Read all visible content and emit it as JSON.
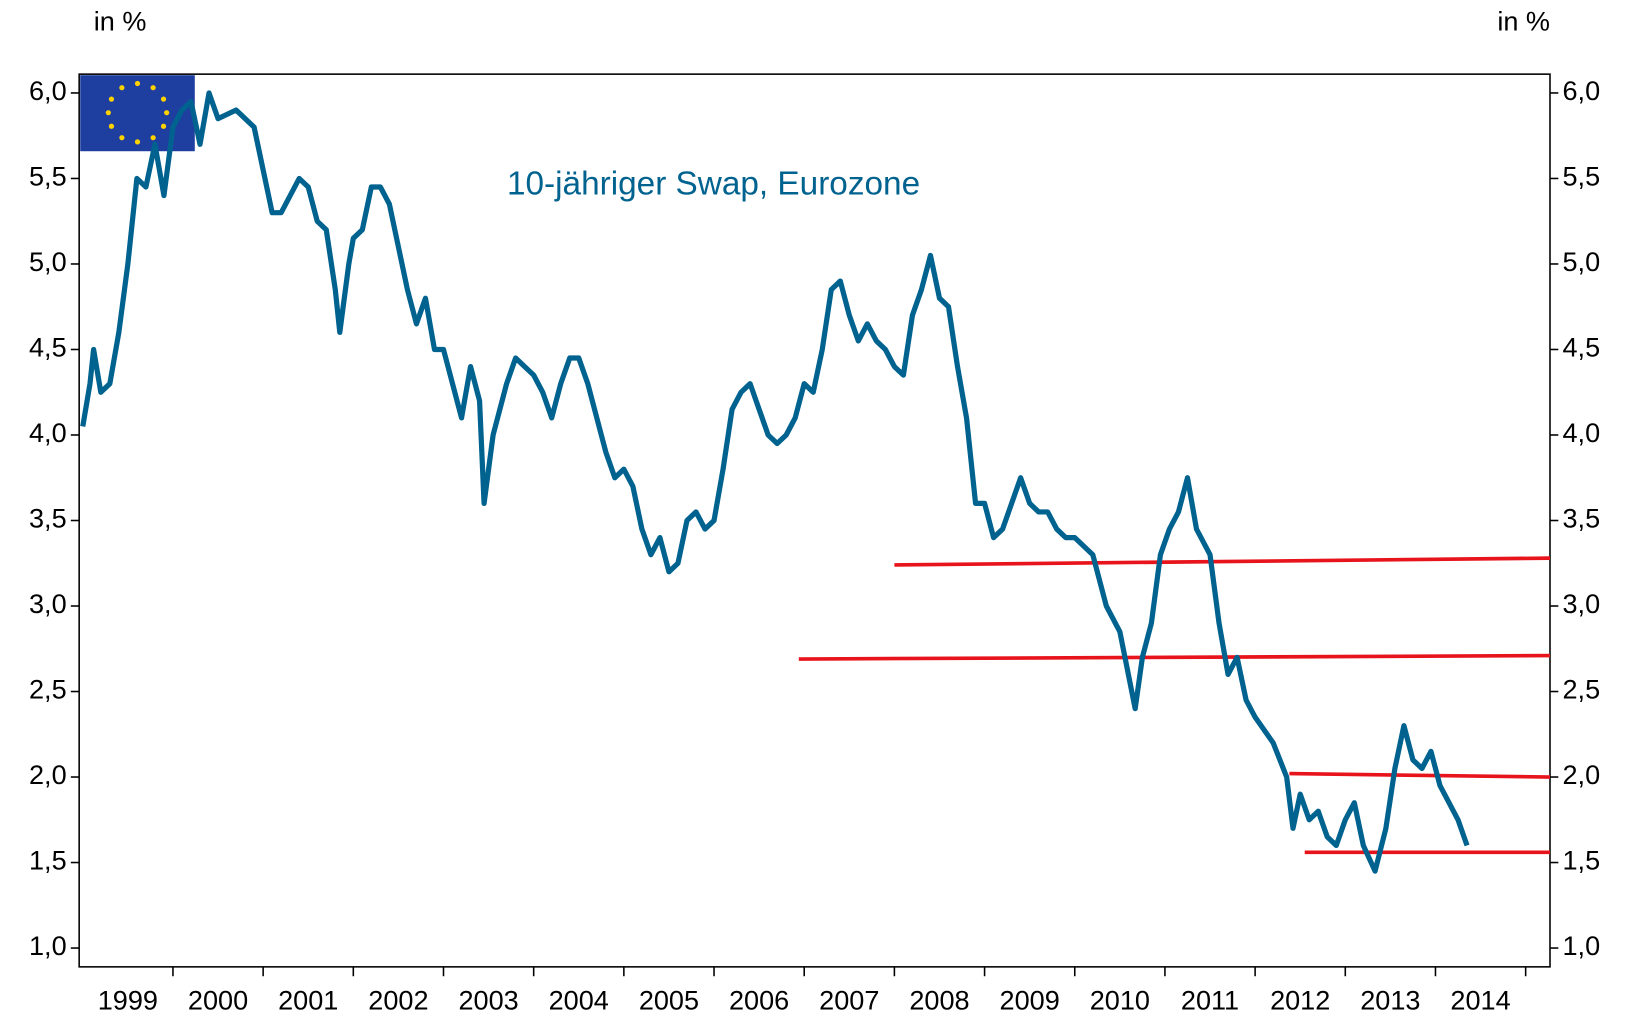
{
  "chart_data": {
    "type": "line",
    "title": "10-jähriger Swap, Eurozone",
    "y_label": "in %",
    "y2_label": "in %",
    "xlim": [
      1998.96,
      2015.27
    ],
    "xticks": [
      2000,
      2001,
      2002,
      2003,
      2004,
      2005,
      2006,
      2007,
      2008,
      2009,
      2010,
      2011,
      2012,
      2013,
      2014,
      2015
    ],
    "x_labels": [
      "1999",
      "2000",
      "2001",
      "2002",
      "2003",
      "2004",
      "2005",
      "2006",
      "2007",
      "2008",
      "2009",
      "2010",
      "2011",
      "2012",
      "2013",
      "2014"
    ],
    "ylim": [
      0.89,
      6.11
    ],
    "yticks": [
      {
        "value": 1,
        "label": "1,0"
      },
      {
        "value": 1.5,
        "label": "1,5"
      },
      {
        "value": 2,
        "label": "2,0"
      },
      {
        "value": 2.5,
        "label": "2,5"
      },
      {
        "value": 3,
        "label": "3,0"
      },
      {
        "value": 3.5,
        "label": "3,5"
      },
      {
        "value": 4,
        "label": "4,0"
      },
      {
        "value": 4.5,
        "label": "4,5"
      },
      {
        "value": 5,
        "label": "5,0"
      },
      {
        "value": 5.5,
        "label": "5,5"
      },
      {
        "value": 6,
        "label": "6,0"
      }
    ],
    "series": [
      {
        "color": "#00628f",
        "x": [
          1999.0,
          1999.08,
          1999.12,
          1999.2,
          1999.3,
          1999.4,
          1999.5,
          1999.6,
          1999.7,
          1999.8,
          1999.9,
          2000.0,
          2000.1,
          2000.2,
          2000.3,
          2000.4,
          2000.5,
          2000.7,
          2000.9,
          2001.0,
          2001.1,
          2001.2,
          2001.3,
          2001.4,
          2001.5,
          2001.6,
          2001.7,
          2001.8,
          2001.85,
          2001.95,
          2002.0,
          2002.1,
          2002.2,
          2002.3,
          2002.4,
          2002.5,
          2002.6,
          2002.7,
          2002.8,
          2002.9,
          2003.0,
          2003.1,
          2003.2,
          2003.3,
          2003.4,
          2003.45,
          2003.55,
          2003.7,
          2003.8,
          2003.9,
          2004.0,
          2004.1,
          2004.2,
          2004.3,
          2004.4,
          2004.5,
          2004.6,
          2004.7,
          2004.8,
          2004.9,
          2005.0,
          2005.1,
          2005.2,
          2005.3,
          2005.4,
          2005.5,
          2005.6,
          2005.7,
          2005.8,
          2005.9,
          2006.0,
          2006.1,
          2006.2,
          2006.3,
          2006.4,
          2006.5,
          2006.6,
          2006.7,
          2006.8,
          2006.9,
          2007.0,
          2007.1,
          2007.2,
          2007.3,
          2007.4,
          2007.5,
          2007.6,
          2007.7,
          2007.8,
          2007.9,
          2008.0,
          2008.1,
          2008.2,
          2008.3,
          2008.4,
          2008.5,
          2008.6,
          2008.7,
          2008.8,
          2008.9,
          2009.0,
          2009.1,
          2009.2,
          2009.3,
          2009.4,
          2009.5,
          2009.6,
          2009.7,
          2009.8,
          2009.9,
          2010.0,
          2010.2,
          2010.35,
          2010.5,
          2010.67,
          2010.75,
          2010.85,
          2010.95,
          2011.05,
          2011.15,
          2011.25,
          2011.35,
          2011.5,
          2011.6,
          2011.7,
          2011.8,
          2011.9,
          2012.0,
          2012.2,
          2012.35,
          2012.42,
          2012.5,
          2012.6,
          2012.7,
          2012.8,
          2012.9,
          2013.0,
          2013.1,
          2013.2,
          2013.33,
          2013.45,
          2013.55,
          2013.65,
          2013.75,
          2013.85,
          2013.95,
          2014.05,
          2014.15,
          2014.25,
          2014.35
        ],
        "values": [
          4.05,
          4.3,
          4.5,
          4.25,
          4.3,
          4.6,
          5.0,
          5.5,
          5.45,
          5.7,
          5.4,
          5.8,
          5.9,
          5.95,
          5.7,
          6.0,
          5.85,
          5.9,
          5.8,
          5.55,
          5.3,
          5.3,
          5.4,
          5.5,
          5.45,
          5.25,
          5.2,
          4.85,
          4.6,
          5.0,
          5.15,
          5.2,
          5.45,
          5.45,
          5.35,
          5.1,
          4.85,
          4.65,
          4.8,
          4.5,
          4.5,
          4.3,
          4.1,
          4.4,
          4.2,
          3.6,
          4.0,
          4.3,
          4.45,
          4.4,
          4.35,
          4.25,
          4.1,
          4.3,
          4.45,
          4.45,
          4.3,
          4.1,
          3.9,
          3.75,
          3.8,
          3.7,
          3.45,
          3.3,
          3.4,
          3.2,
          3.25,
          3.5,
          3.55,
          3.45,
          3.5,
          3.8,
          4.15,
          4.25,
          4.3,
          4.15,
          4.0,
          3.95,
          4.0,
          4.1,
          4.3,
          4.25,
          4.5,
          4.85,
          4.9,
          4.7,
          4.55,
          4.65,
          4.55,
          4.5,
          4.4,
          4.35,
          4.7,
          4.85,
          5.05,
          4.8,
          4.75,
          4.4,
          4.1,
          3.6,
          3.6,
          3.4,
          3.45,
          3.6,
          3.75,
          3.6,
          3.55,
          3.55,
          3.45,
          3.4,
          3.4,
          3.3,
          3.0,
          2.85,
          2.4,
          2.7,
          2.9,
          3.3,
          3.45,
          3.55,
          3.75,
          3.45,
          3.3,
          2.9,
          2.6,
          2.7,
          2.45,
          2.35,
          2.2,
          2.0,
          1.7,
          1.9,
          1.75,
          1.8,
          1.65,
          1.6,
          1.75,
          1.85,
          1.6,
          1.45,
          1.7,
          2.05,
          2.3,
          2.1,
          2.05,
          2.15,
          1.95,
          1.85,
          1.75,
          1.6
        ]
      }
    ],
    "reference_lines": [
      {
        "color": "#e8141c",
        "x": [
          2008.0,
          2015.27
        ],
        "values": [
          3.24,
          3.28
        ]
      },
      {
        "color": "#e8141c",
        "x": [
          2006.94,
          2015.27
        ],
        "values": [
          2.69,
          2.71
        ]
      },
      {
        "color": "#e8141c",
        "x": [
          2012.38,
          2015.27
        ],
        "values": [
          2.02,
          2.0
        ]
      },
      {
        "color": "#e8141c",
        "x": [
          2012.55,
          2015.27
        ],
        "values": [
          1.56,
          1.56
        ]
      }
    ]
  }
}
